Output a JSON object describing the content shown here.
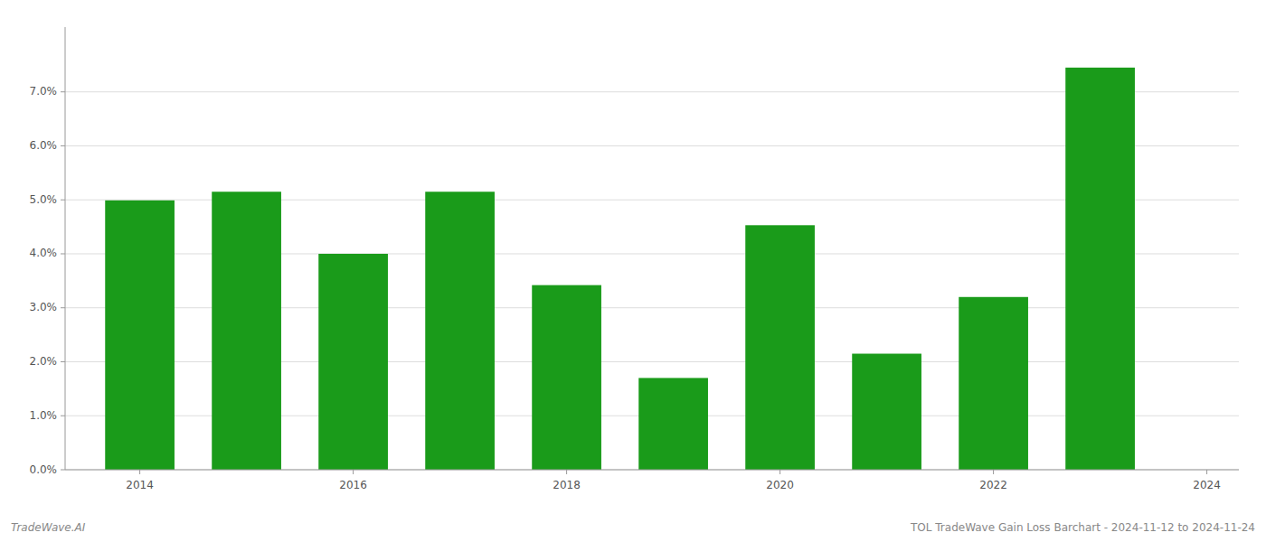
{
  "chart_data": {
    "type": "bar",
    "x": [
      2014,
      2015,
      2016,
      2017,
      2018,
      2019,
      2020,
      2021,
      2022,
      2023
    ],
    "values": [
      0.0499,
      0.0515,
      0.04,
      0.0515,
      0.0342,
      0.017,
      0.0453,
      0.0215,
      0.032,
      0.0745
    ],
    "color": "#1a9b1a",
    "xlim": [
      2013.3,
      2024.3
    ],
    "xticks": [
      2014,
      2016,
      2018,
      2020,
      2022,
      2024
    ],
    "ylim": [
      0,
      0.082
    ],
    "yticks": [
      {
        "value": 0.0,
        "label": "0.0%"
      },
      {
        "value": 0.01,
        "label": "1.0%"
      },
      {
        "value": 0.02,
        "label": "2.0%"
      },
      {
        "value": 0.03,
        "label": "3.0%"
      },
      {
        "value": 0.04,
        "label": "4.0%"
      },
      {
        "value": 0.05,
        "label": "5.0%"
      },
      {
        "value": 0.06,
        "label": "6.0%"
      },
      {
        "value": 0.07,
        "label": "7.0%"
      }
    ],
    "grid": true,
    "annotations": [
      "TradeWave.AI",
      "TOL TradeWave Gain Loss Barchart - 2024-11-12 to 2024-11-24"
    ]
  }
}
